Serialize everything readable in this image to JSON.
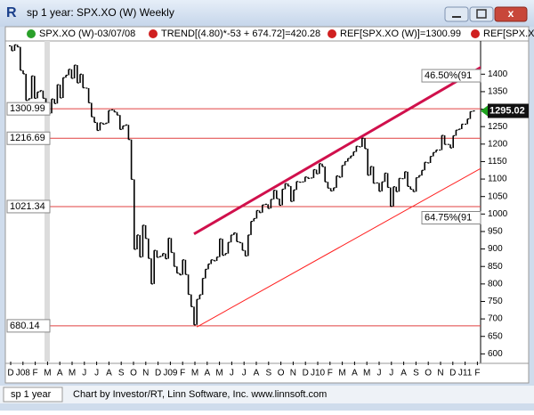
{
  "window": {
    "title": "sp 1 year: SPX.XO (W) Weekly",
    "status_tab": "sp 1 year",
    "status_text": "Chart by Investor/RT, Linn Software, Inc. www.linnsoft.com"
  },
  "legend": [
    "SPX.XO (W)-03/07/08",
    "TREND[(4.80)*-53 + 674.72]=420.28",
    "REF[SPX.XO (W)]=1300.99",
    "REF[SPX.XO (W)"
  ],
  "chart_data": {
    "type": "price-bars",
    "values": [
      1481,
      1467,
      1484,
      1478,
      1411,
      1401,
      1325,
      1330,
      1395,
      1331,
      1349,
      1353,
      1331,
      1294,
      1288,
      1329,
      1316,
      1370,
      1332,
      1390,
      1397,
      1414,
      1388,
      1426,
      1375,
      1400,
      1361,
      1360,
      1318,
      1278,
      1262,
      1239,
      1261,
      1257,
      1260,
      1296,
      1298,
      1292,
      1283,
      1242,
      1252,
      1255,
      1213,
      1099,
      899,
      940,
      877,
      968,
      930,
      873,
      800,
      896,
      876,
      879,
      887,
      872,
      931,
      890,
      850,
      831,
      826,
      869,
      827,
      770,
      735,
      683,
      756,
      769,
      816,
      842,
      857,
      869,
      866,
      877,
      929,
      882,
      887,
      919,
      940,
      946,
      921,
      918,
      896,
      880,
      940,
      979,
      987,
      1010,
      1004,
      1026,
      1028,
      1016,
      1042,
      1068,
      1044,
      1025,
      1071,
      1087,
      1080,
      1036,
      1069,
      1093,
      1091,
      1092,
      1106,
      1102,
      1103,
      1127,
      1115,
      1144,
      1136,
      1092,
      1074,
      1066,
      1075,
      1109,
      1105,
      1139,
      1150,
      1159,
      1166,
      1178,
      1194,
      1192,
      1217,
      1187,
      1111,
      1136,
      1088,
      1089,
      1065,
      1092,
      1117,
      1076,
      1022,
      1078,
      1064,
      1102,
      1101,
      1121,
      1079,
      1071,
      1064,
      1104,
      1110,
      1125,
      1148,
      1146,
      1165,
      1176,
      1183,
      1183,
      1225,
      1199,
      1199,
      1189,
      1224,
      1240,
      1243,
      1257,
      1257,
      1272,
      1293,
      1295
    ],
    "color": "#000000",
    "month_labels": [
      "D",
      "J08",
      "F",
      "M",
      "A",
      "M",
      "J",
      "J",
      "A",
      "S",
      "O",
      "N",
      "D",
      "J09",
      "F",
      "M",
      "A",
      "M",
      "J",
      "J",
      "A",
      "S",
      "O",
      "N",
      "D",
      "J10",
      "F",
      "M",
      "A",
      "M",
      "J",
      "J",
      "A",
      "S",
      "O",
      "N",
      "D",
      "J11",
      "F"
    ],
    "ylim": [
      578,
      1495
    ],
    "yticks": [
      600,
      650,
      700,
      750,
      800,
      850,
      900,
      950,
      1000,
      1050,
      1100,
      1150,
      1200,
      1250,
      1300,
      1350,
      1400
    ],
    "ref_lines": [
      1300.99,
      1216.69,
      1021.34,
      680.14
    ],
    "last": 1295.02,
    "trend_lines": [
      {
        "label": "46.50%(91",
        "color": "#d0104c",
        "start_index": 65,
        "end_index": 166,
        "start": 943,
        "end": 1421
      },
      {
        "label": "64.75%(91",
        "color": "#ff2020",
        "start_index": 66,
        "end_index": 166,
        "start": 677,
        "end": 1132
      }
    ]
  }
}
